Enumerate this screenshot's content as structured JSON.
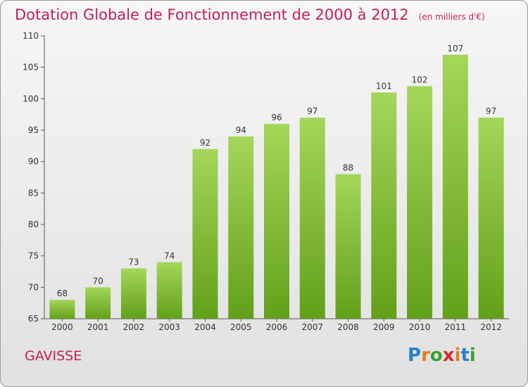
{
  "chart_data": {
    "type": "bar",
    "title": "Dotation Globale de Fonctionnement de 2000 à 2012",
    "unit_note": "(en milliers d'€)",
    "categories": [
      "2000",
      "2001",
      "2002",
      "2003",
      "2004",
      "2005",
      "2006",
      "2007",
      "2008",
      "2009",
      "2010",
      "2011",
      "2012"
    ],
    "values": [
      68,
      70,
      73,
      74,
      92,
      94,
      96,
      97,
      88,
      101,
      102,
      107,
      97
    ],
    "ylim": [
      65,
      110
    ],
    "yticks": [
      65,
      70,
      75,
      80,
      85,
      90,
      95,
      100,
      105,
      110
    ],
    "grid": false,
    "bar_color_top": "#a4d65a",
    "bar_color_bottom": "#62a019"
  },
  "footer": {
    "commune": "GAVISSE",
    "brand_letters": [
      "P",
      "r",
      "o",
      "x",
      "i",
      "t",
      "i"
    ],
    "brand_colors": [
      "#2a7fc9",
      "#e37d20",
      "#3ba02f",
      "#d42a2a",
      "#e37d20",
      "#2a7fc9",
      "#3ba02f"
    ]
  },
  "theme": {
    "title_color": "#c41e5a"
  }
}
